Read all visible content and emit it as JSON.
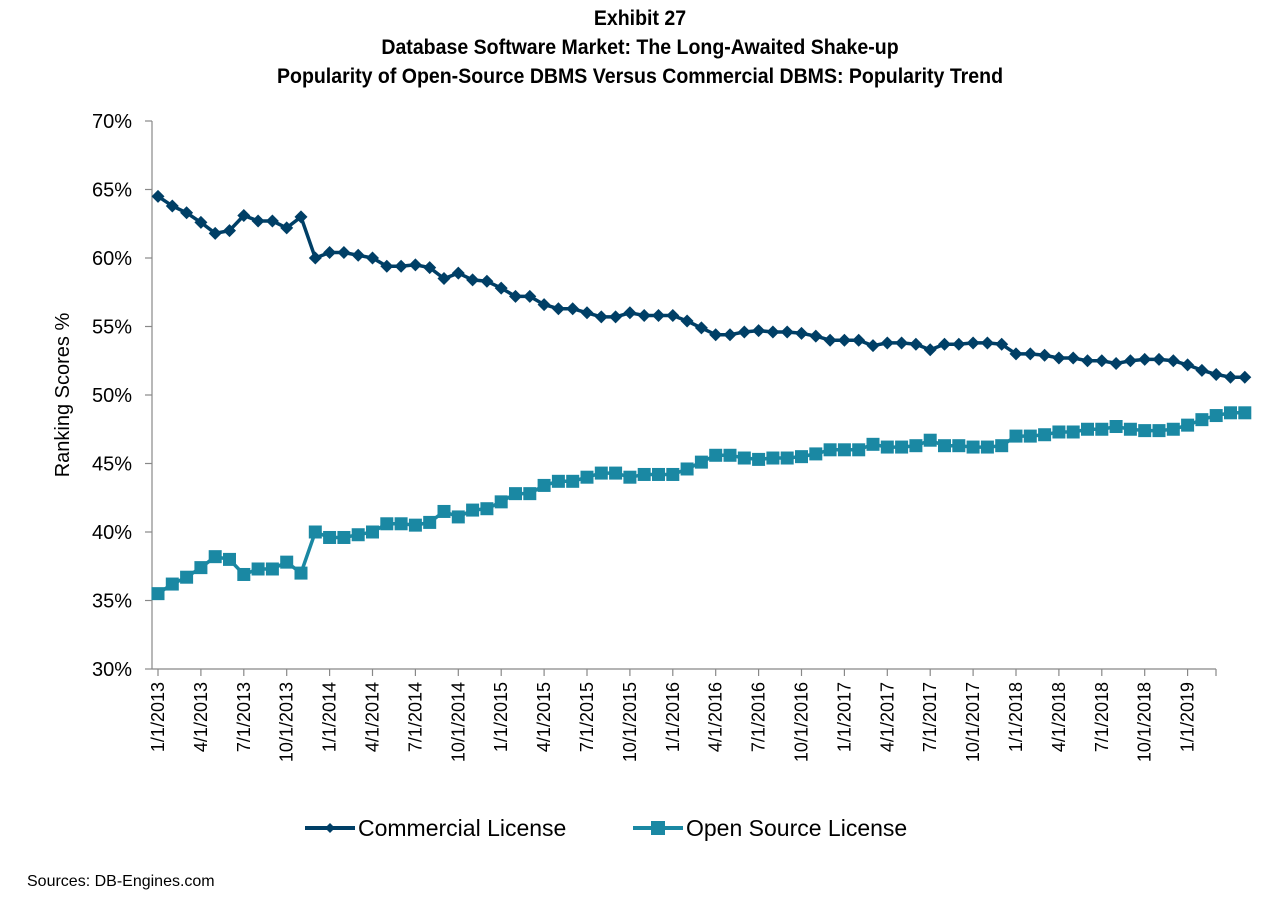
{
  "header": {
    "exhibit": "Exhibit 27",
    "title": "Database Software Market: The Long-Awaited Shake-up",
    "subtitle": "Popularity of Open-Source DBMS Versus Commercial DBMS: Popularity Trend"
  },
  "footer": {
    "source": "Sources: DB-Engines.com"
  },
  "chart_data": {
    "type": "line",
    "title": "Popularity of Open-Source DBMS Versus Commercial DBMS: Popularity Trend",
    "xlabel": "",
    "ylabel": "Ranking Scores %",
    "ylim": [
      30,
      70
    ],
    "y_ticks": [
      30,
      35,
      40,
      45,
      50,
      55,
      60,
      65,
      70
    ],
    "y_tick_labels": [
      "30%",
      "35%",
      "40%",
      "45%",
      "50%",
      "55%",
      "60%",
      "65%",
      "70%"
    ],
    "x_start": "1/1/2013",
    "x_interval": "monthly",
    "x_tick_labels": [
      "1/1/2013",
      "4/1/2013",
      "7/1/2013",
      "10/1/2013",
      "1/1/2014",
      "4/1/2014",
      "7/1/2014",
      "10/1/2014",
      "1/1/2015",
      "4/1/2015",
      "7/1/2015",
      "10/1/2015",
      "1/1/2016",
      "4/1/2016",
      "7/1/2016",
      "10/1/2016",
      "1/1/2017",
      "4/1/2017",
      "7/1/2017",
      "10/1/2017",
      "1/1/2018",
      "4/1/2018",
      "7/1/2018",
      "10/1/2018",
      "1/1/2019"
    ],
    "x_tick_every_n_points": 3,
    "grid": false,
    "legend_position": "bottom",
    "series": [
      {
        "name": "Commercial License",
        "color": "#003f66",
        "marker": "diamond",
        "values": [
          64.5,
          63.8,
          63.3,
          62.6,
          61.8,
          62.0,
          63.1,
          62.7,
          62.7,
          62.2,
          63.0,
          60.0,
          60.4,
          60.4,
          60.2,
          60.0,
          59.4,
          59.4,
          59.5,
          59.3,
          58.5,
          58.9,
          58.4,
          58.3,
          57.8,
          57.2,
          57.2,
          56.6,
          56.3,
          56.3,
          56.0,
          55.7,
          55.7,
          56.0,
          55.8,
          55.8,
          55.8,
          55.4,
          54.9,
          54.4,
          54.4,
          54.6,
          54.7,
          54.6,
          54.6,
          54.5,
          54.3,
          54.0,
          54.0,
          54.0,
          53.6,
          53.8,
          53.8,
          53.7,
          53.3,
          53.7,
          53.7,
          53.8,
          53.8,
          53.7,
          53.0,
          53.0,
          52.9,
          52.7,
          52.7,
          52.5,
          52.5,
          52.3,
          52.5,
          52.6,
          52.6,
          52.5,
          52.2,
          51.8,
          51.5,
          51.3,
          51.3
        ]
      },
      {
        "name": "Open Source License",
        "color": "#1a88a3",
        "marker": "square",
        "values": [
          35.5,
          36.2,
          36.7,
          37.4,
          38.2,
          38.0,
          36.9,
          37.3,
          37.3,
          37.8,
          37.0,
          40.0,
          39.6,
          39.6,
          39.8,
          40.0,
          40.6,
          40.6,
          40.5,
          40.7,
          41.5,
          41.1,
          41.6,
          41.7,
          42.2,
          42.8,
          42.8,
          43.4,
          43.7,
          43.7,
          44.0,
          44.3,
          44.3,
          44.0,
          44.2,
          44.2,
          44.2,
          44.6,
          45.1,
          45.6,
          45.6,
          45.4,
          45.3,
          45.4,
          45.4,
          45.5,
          45.7,
          46.0,
          46.0,
          46.0,
          46.4,
          46.2,
          46.2,
          46.3,
          46.7,
          46.3,
          46.3,
          46.2,
          46.2,
          46.3,
          47.0,
          47.0,
          47.1,
          47.3,
          47.3,
          47.5,
          47.5,
          47.7,
          47.5,
          47.4,
          47.4,
          47.5,
          47.8,
          48.2,
          48.5,
          48.7,
          48.7
        ]
      }
    ]
  }
}
